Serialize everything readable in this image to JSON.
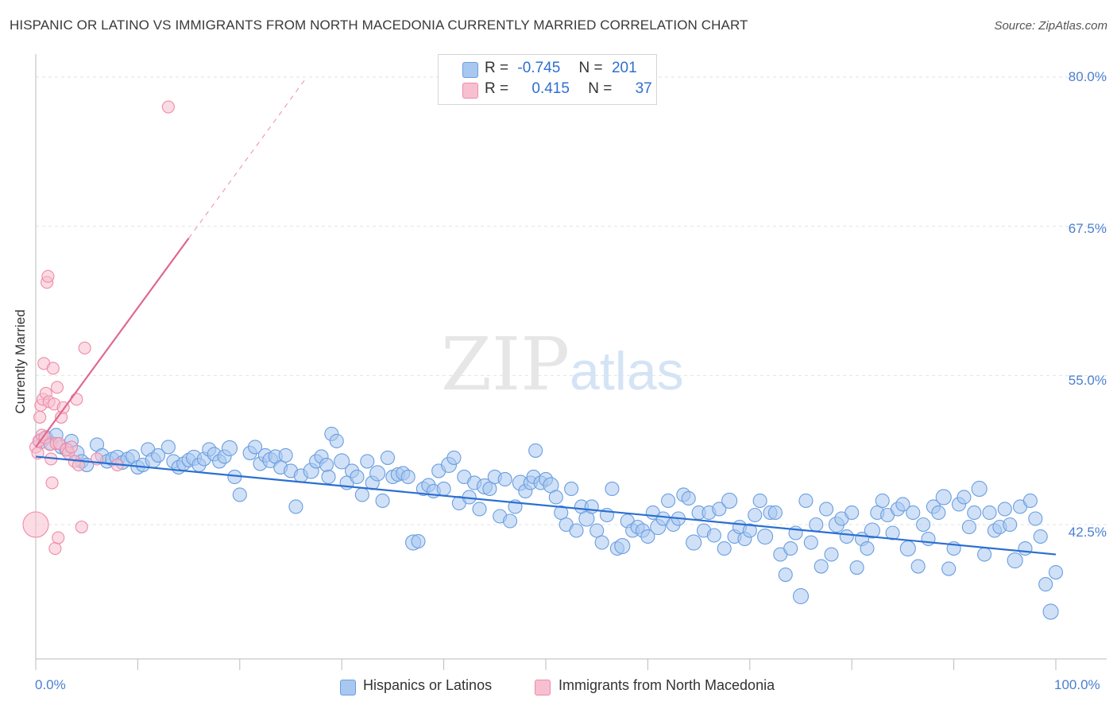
{
  "title": "HISPANIC OR LATINO VS IMMIGRANTS FROM NORTH MACEDONIA CURRENTLY MARRIED CORRELATION CHART",
  "source": "Source: ZipAtlas.com",
  "watermark": {
    "zip": "ZIP",
    "atlas": "atlas"
  },
  "legend_top": {
    "rows": [
      {
        "r_label": "R =",
        "r_value": "-0.745",
        "n_label": "N =",
        "n_value": "201"
      },
      {
        "r_label": "R =",
        "r_value": "0.415",
        "n_label": "N =",
        "n_value": "37"
      }
    ]
  },
  "legend_bottom": [
    {
      "label": "Hispanics or Latinos"
    },
    {
      "label": "Immigrants from North Macedonia"
    }
  ],
  "colors": {
    "blue_fill": "#a9c8f0",
    "blue_stroke": "#6a9ee0",
    "blue_line": "#2b6fd1",
    "pink_fill": "#f7c0d0",
    "pink_stroke": "#ee8aa8",
    "pink_line": "#e0688f",
    "grid": "#e2e2e2",
    "tick_text": "#4a7fd1"
  },
  "chart_data": {
    "type": "scatter",
    "title": "HISPANIC OR LATINO VS IMMIGRANTS FROM NORTH MACEDONIA CURRENTLY MARRIED CORRELATION CHART",
    "xlabel": "",
    "ylabel": "Currently Married",
    "xlim": [
      0,
      100
    ],
    "ylim": [
      30.0,
      81.0
    ],
    "x_tick_labels": [
      "0.0%",
      "100.0%"
    ],
    "y_ticks": [
      80.0,
      67.5,
      55.0,
      42.5
    ],
    "y_tick_labels": [
      "80.0%",
      "67.5%",
      "55.0%",
      "42.5%"
    ],
    "grid": true,
    "legend_placement": "top-center",
    "series": [
      {
        "name": "Hispanics or Latinos",
        "R": -0.745,
        "N": 201,
        "trend": {
          "x": [
            0,
            100
          ],
          "y": [
            48.2,
            40.0
          ]
        },
        "points": [
          [
            0.5,
            49.5
          ],
          [
            1,
            49.8
          ],
          [
            1.5,
            49.3
          ],
          [
            2,
            50.0
          ],
          [
            2.5,
            49.0
          ],
          [
            3,
            48.8
          ],
          [
            3.5,
            49.5
          ],
          [
            4,
            48.5
          ],
          [
            4.5,
            47.8
          ],
          [
            5,
            47.5
          ],
          [
            6,
            49.2
          ],
          [
            6.5,
            48.3
          ],
          [
            7,
            47.8
          ],
          [
            7.5,
            48.0
          ],
          [
            8,
            48.1
          ],
          [
            8.5,
            47.7
          ],
          [
            9,
            48.0
          ],
          [
            9.5,
            48.2
          ],
          [
            10,
            47.3
          ],
          [
            10.5,
            47.5
          ],
          [
            11,
            48.8
          ],
          [
            11.5,
            47.9
          ],
          [
            12,
            48.3
          ],
          [
            13,
            49.0
          ],
          [
            13.5,
            47.8
          ],
          [
            14,
            47.3
          ],
          [
            14.5,
            47.6
          ],
          [
            15,
            47.9
          ],
          [
            15.5,
            48.1
          ],
          [
            16,
            47.5
          ],
          [
            16.5,
            48.0
          ],
          [
            17,
            48.8
          ],
          [
            17.5,
            48.4
          ],
          [
            18,
            47.8
          ],
          [
            18.5,
            48.2
          ],
          [
            19,
            48.9
          ],
          [
            19.5,
            46.5
          ],
          [
            20,
            45.0
          ],
          [
            21,
            48.5
          ],
          [
            21.5,
            49.0
          ],
          [
            22,
            47.6
          ],
          [
            22.5,
            48.3
          ],
          [
            23,
            47.9
          ],
          [
            23.5,
            48.2
          ],
          [
            24,
            47.3
          ],
          [
            24.5,
            48.3
          ],
          [
            25,
            47.0
          ],
          [
            25.5,
            44.0
          ],
          [
            26,
            46.6
          ],
          [
            27,
            47.0
          ],
          [
            27.5,
            47.8
          ],
          [
            28,
            48.2
          ],
          [
            28.5,
            47.5
          ],
          [
            28.7,
            46.5
          ],
          [
            29,
            50.1
          ],
          [
            29.5,
            49.5
          ],
          [
            30,
            47.8
          ],
          [
            30.5,
            46.0
          ],
          [
            31,
            47.0
          ],
          [
            31.5,
            46.5
          ],
          [
            32,
            45.0
          ],
          [
            32.5,
            47.8
          ],
          [
            33,
            46.0
          ],
          [
            33.5,
            46.8
          ],
          [
            34,
            44.5
          ],
          [
            34.5,
            48.1
          ],
          [
            35,
            46.5
          ],
          [
            35.5,
            46.7
          ],
          [
            36,
            46.8
          ],
          [
            36.5,
            46.5
          ],
          [
            37,
            41.0
          ],
          [
            37.5,
            41.1
          ],
          [
            38,
            45.5
          ],
          [
            38.5,
            45.8
          ],
          [
            39,
            45.3
          ],
          [
            39.5,
            47.0
          ],
          [
            40,
            45.5
          ],
          [
            40.5,
            47.5
          ],
          [
            41,
            48.1
          ],
          [
            41.5,
            44.3
          ],
          [
            42,
            46.5
          ],
          [
            42.5,
            44.8
          ],
          [
            43,
            46.0
          ],
          [
            43.5,
            43.8
          ],
          [
            44,
            45.7
          ],
          [
            44.5,
            45.5
          ],
          [
            45,
            46.5
          ],
          [
            45.5,
            43.2
          ],
          [
            46,
            46.3
          ],
          [
            46.5,
            42.8
          ],
          [
            47,
            44.0
          ],
          [
            47.5,
            46.0
          ],
          [
            48,
            45.3
          ],
          [
            48.5,
            46.0
          ],
          [
            48.8,
            46.5
          ],
          [
            49,
            48.7
          ],
          [
            49.5,
            46.0
          ],
          [
            50,
            46.3
          ],
          [
            50.5,
            45.8
          ],
          [
            51,
            44.8
          ],
          [
            51.5,
            43.5
          ],
          [
            52,
            42.5
          ],
          [
            52.5,
            45.5
          ],
          [
            53,
            42.0
          ],
          [
            53.5,
            44.0
          ],
          [
            54,
            43.0
          ],
          [
            54.5,
            44.0
          ],
          [
            55,
            42.0
          ],
          [
            55.5,
            41.0
          ],
          [
            56,
            43.3
          ],
          [
            56.5,
            45.5
          ],
          [
            57,
            40.5
          ],
          [
            57.5,
            40.7
          ],
          [
            58,
            42.8
          ],
          [
            58.5,
            42.0
          ],
          [
            59,
            42.3
          ],
          [
            59.5,
            42.0
          ],
          [
            60,
            41.5
          ],
          [
            60.5,
            43.5
          ],
          [
            61,
            42.3
          ],
          [
            61.5,
            43.0
          ],
          [
            62,
            44.5
          ],
          [
            62.5,
            42.5
          ],
          [
            63,
            43.0
          ],
          [
            63.5,
            45.0
          ],
          [
            64,
            44.7
          ],
          [
            64.5,
            41.0
          ],
          [
            65,
            43.5
          ],
          [
            65.5,
            42.0
          ],
          [
            66,
            43.5
          ],
          [
            66.5,
            41.6
          ],
          [
            67,
            43.8
          ],
          [
            67.5,
            40.5
          ],
          [
            68,
            44.5
          ],
          [
            68.5,
            41.5
          ],
          [
            69,
            42.3
          ],
          [
            69.5,
            41.3
          ],
          [
            70,
            42.0
          ],
          [
            70.5,
            43.3
          ],
          [
            71,
            44.5
          ],
          [
            71.5,
            41.5
          ],
          [
            72,
            43.5
          ],
          [
            72.5,
            43.5
          ],
          [
            73,
            40.0
          ],
          [
            73.5,
            38.3
          ],
          [
            74,
            40.5
          ],
          [
            74.5,
            41.8
          ],
          [
            75,
            36.5
          ],
          [
            75.5,
            44.5
          ],
          [
            76,
            41.0
          ],
          [
            76.5,
            42.5
          ],
          [
            77,
            39.0
          ],
          [
            77.5,
            43.8
          ],
          [
            78,
            40.0
          ],
          [
            78.5,
            42.5
          ],
          [
            79,
            43.0
          ],
          [
            79.5,
            41.5
          ],
          [
            80,
            43.5
          ],
          [
            80.5,
            38.9
          ],
          [
            81,
            41.3
          ],
          [
            81.5,
            40.5
          ],
          [
            82,
            42.0
          ],
          [
            82.5,
            43.5
          ],
          [
            83,
            44.5
          ],
          [
            83.5,
            43.3
          ],
          [
            84,
            41.8
          ],
          [
            84.5,
            43.8
          ],
          [
            85,
            44.2
          ],
          [
            85.5,
            40.5
          ],
          [
            86,
            43.5
          ],
          [
            86.5,
            39.0
          ],
          [
            87,
            42.5
          ],
          [
            87.5,
            41.3
          ],
          [
            88,
            44.0
          ],
          [
            88.5,
            43.5
          ],
          [
            89,
            44.8
          ],
          [
            89.5,
            38.8
          ],
          [
            90,
            40.5
          ],
          [
            90.5,
            44.2
          ],
          [
            91,
            44.8
          ],
          [
            91.5,
            42.3
          ],
          [
            92,
            43.5
          ],
          [
            92.5,
            45.5
          ],
          [
            93,
            40.0
          ],
          [
            93.5,
            43.5
          ],
          [
            94,
            42.0
          ],
          [
            94.5,
            42.3
          ],
          [
            95,
            43.8
          ],
          [
            95.5,
            42.5
          ],
          [
            96,
            39.5
          ],
          [
            96.5,
            44.0
          ],
          [
            97,
            40.5
          ],
          [
            97.5,
            44.5
          ],
          [
            98,
            43.0
          ],
          [
            98.5,
            41.5
          ],
          [
            99,
            37.5
          ],
          [
            99.5,
            35.2
          ],
          [
            100,
            38.5
          ]
        ]
      },
      {
        "name": "Immigrants from North Macedonia",
        "R": 0.415,
        "N": 37,
        "trend": {
          "x": [
            0,
            15
          ],
          "y": [
            49.0,
            66.5
          ]
        },
        "points": [
          [
            0,
            49.0
          ],
          [
            0,
            42.5
          ],
          [
            0.2,
            48.5
          ],
          [
            0.3,
            49.5
          ],
          [
            0.4,
            51.5
          ],
          [
            0.5,
            52.5
          ],
          [
            0.6,
            50.0
          ],
          [
            0.7,
            53.0
          ],
          [
            0.8,
            56.0
          ],
          [
            0.9,
            49.8
          ],
          [
            1,
            53.5
          ],
          [
            1.1,
            62.8
          ],
          [
            1.2,
            63.3
          ],
          [
            1.3,
            52.8
          ],
          [
            1.4,
            49.2
          ],
          [
            1.5,
            48.0
          ],
          [
            1.6,
            46.0
          ],
          [
            1.7,
            55.6
          ],
          [
            1.8,
            52.6
          ],
          [
            1.9,
            40.5
          ],
          [
            2,
            49.3
          ],
          [
            2.1,
            54.0
          ],
          [
            2.3,
            49.3
          ],
          [
            2.5,
            51.5
          ],
          [
            2.7,
            52.3
          ],
          [
            3,
            48.8
          ],
          [
            3.2,
            48.5
          ],
          [
            3.5,
            49.0
          ],
          [
            3.8,
            47.8
          ],
          [
            4,
            53.0
          ],
          [
            4.2,
            47.5
          ],
          [
            4.5,
            42.3
          ],
          [
            4.8,
            57.3
          ],
          [
            6,
            48.0
          ],
          [
            8,
            47.5
          ],
          [
            2.2,
            41.4
          ],
          [
            13,
            77.5
          ]
        ]
      }
    ]
  }
}
